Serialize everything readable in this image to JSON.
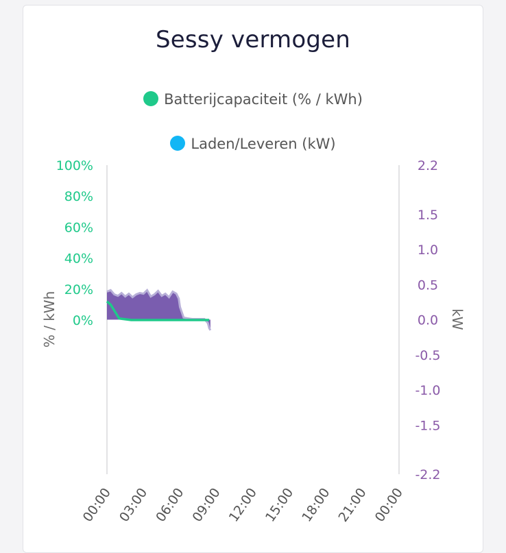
{
  "chart_data": {
    "type": "area",
    "title": "Sessy vermogen",
    "legend": [
      {
        "label": "Batterijcapaciteit (% / kWh)",
        "color": "#1fc98a"
      },
      {
        "label": "Laden/Leveren (kW)",
        "color": "#12b6f5"
      }
    ],
    "colors": {
      "capacity": "#1fc98a",
      "power_fill": "#6f4fa8",
      "power_line": "#b8b0d8",
      "left_axis": "#1fc98a",
      "right_axis": "#8a5aa8",
      "axis_title": "#6a6a6a",
      "axis_line": "#d8d8dc"
    },
    "x_ticks": [
      "00:00",
      "03:00",
      "06:00",
      "09:00",
      "12:00",
      "15:00",
      "18:00",
      "21:00",
      "00:00"
    ],
    "xlim_hours": [
      0,
      24
    ],
    "left_axis": {
      "label": "% / kWh",
      "ylim": [
        0,
        100
      ],
      "ticks": [
        "100%",
        "80%",
        "60%",
        "40%",
        "20%",
        "0%"
      ],
      "tick_values": [
        100,
        80,
        60,
        40,
        20,
        0
      ]
    },
    "right_axis": {
      "label": "kW",
      "ylim": [
        -2.2,
        2.2
      ],
      "ticks": [
        "2.2",
        "1.5",
        "1.0",
        "0.5",
        "0.0",
        "-0.5",
        "-1.0",
        "-1.5",
        "-2.2"
      ],
      "tick_values": [
        2.2,
        1.5,
        1.0,
        0.5,
        0.0,
        -0.5,
        -1.0,
        -1.5,
        -2.2
      ]
    },
    "series": [
      {
        "name": "Batterijcapaciteit (% / kWh)",
        "axis": "left",
        "style": "line",
        "x": [
          0,
          0.3,
          1.0,
          2.0,
          4.0,
          6.0,
          8.0,
          8.3,
          8.4
        ],
        "values": [
          12,
          10,
          1,
          0,
          0,
          0,
          0,
          0,
          0
        ]
      },
      {
        "name": "Laden/Leveren (kW)",
        "axis": "right",
        "style": "area",
        "x": [
          0,
          0.3,
          0.6,
          0.9,
          1.2,
          1.5,
          1.8,
          2.1,
          2.4,
          2.7,
          3.0,
          3.3,
          3.6,
          3.9,
          4.2,
          4.5,
          4.8,
          5.1,
          5.4,
          5.7,
          5.9,
          6.0,
          6.3,
          6.6,
          7.0,
          7.5,
          8.0,
          8.3,
          8.4,
          8.5
        ],
        "values": [
          0.4,
          0.42,
          0.36,
          0.34,
          0.38,
          0.33,
          0.37,
          0.32,
          0.36,
          0.38,
          0.37,
          0.42,
          0.33,
          0.36,
          0.41,
          0.34,
          0.37,
          0.32,
          0.4,
          0.37,
          0.3,
          0.18,
          0.03,
          0.02,
          0.01,
          0.01,
          0.01,
          -0.05,
          -0.12,
          -0.15
        ]
      }
    ]
  }
}
